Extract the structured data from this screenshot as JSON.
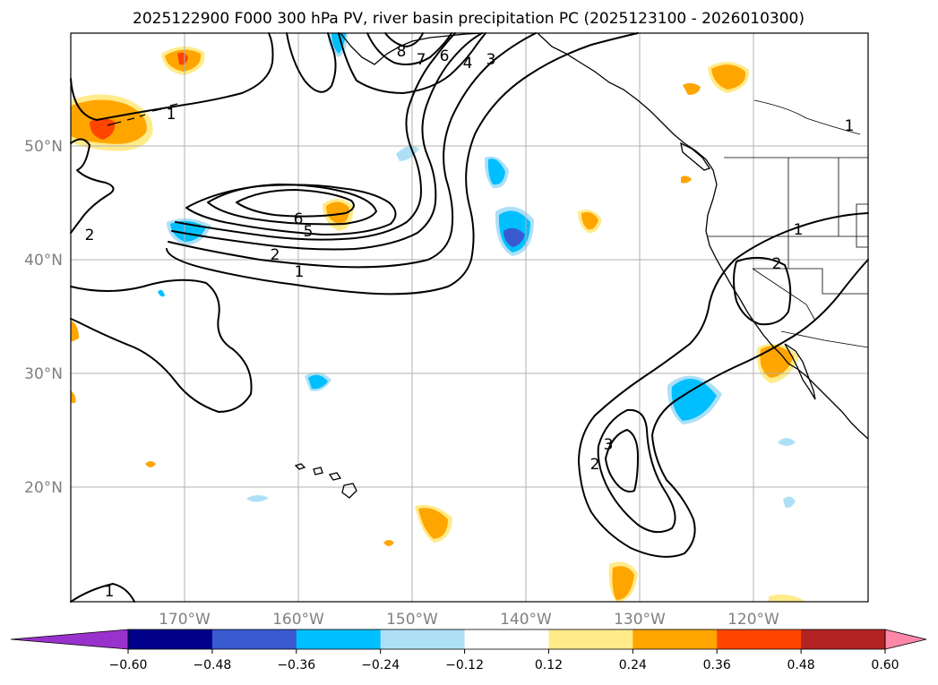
{
  "title": "2025122900 F000 300 hPa PV, river basin precipitation PC (2025123100 - 2026010300)",
  "lon_ticks": [
    "170°W",
    "160°W",
    "150°W",
    "140°W",
    "130°W",
    "120°W"
  ],
  "lat_ticks": [
    "50°N",
    "40°N",
    "30°N",
    "20°N"
  ],
  "colorbar": {
    "ticks": [
      "−0.60",
      "−0.48",
      "−0.36",
      "−0.24",
      "−0.12",
      "0.12",
      "0.24",
      "0.36",
      "0.48",
      "0.60"
    ],
    "under_color": "#9932CC",
    "over_color": "#FF88AA",
    "colors": [
      "#00008B",
      "#3A5BD0",
      "#00BFFF",
      "#ADE0F7",
      "#FFFFFF",
      "#FFEB8A",
      "#FFA500",
      "#FF4500",
      "#B22222"
    ]
  },
  "contour_labels": [
    "8",
    "7",
    "6",
    "4",
    "3",
    "1",
    "2",
    "6",
    "5",
    "2",
    "1",
    "1",
    "2",
    "2",
    "3",
    "1",
    "1"
  ]
}
